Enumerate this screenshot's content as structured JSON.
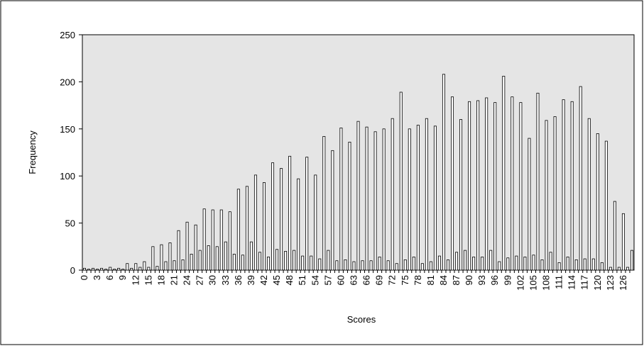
{
  "chart_data": {
    "type": "bar",
    "x_label": "Scores",
    "y_label": "Frequency",
    "categories": [
      0,
      null,
      null,
      3,
      null,
      null,
      6,
      null,
      null,
      9,
      null,
      null,
      12,
      null,
      null,
      15,
      null,
      null,
      18,
      null,
      null,
      21,
      null,
      null,
      24,
      null,
      null,
      27,
      null,
      null,
      30,
      null,
      null,
      33,
      null,
      null,
      36,
      null,
      null,
      39,
      null,
      null,
      42,
      null,
      null,
      45,
      null,
      null,
      48,
      null,
      null,
      51,
      null,
      null,
      54,
      null,
      null,
      57,
      null,
      null,
      60,
      null,
      null,
      63,
      null,
      null,
      66,
      null,
      null,
      69,
      null,
      null,
      72,
      null,
      null,
      75,
      null,
      null,
      78,
      null,
      null,
      81,
      null,
      null,
      84,
      null,
      null,
      87,
      null,
      null,
      90,
      null,
      null,
      93,
      null,
      null,
      96,
      null,
      null,
      99,
      null,
      null,
      102,
      null,
      null,
      105,
      null,
      null,
      108,
      null,
      null,
      111,
      null,
      null,
      114,
      null,
      null,
      117,
      null,
      null,
      120,
      null,
      null,
      123,
      null,
      null,
      126,
      null,
      null
    ],
    "values": [
      2,
      1,
      2,
      1,
      2,
      1,
      3,
      1,
      2,
      1,
      7,
      2,
      7,
      3,
      9,
      3,
      25,
      4,
      27,
      9,
      29,
      10,
      42,
      11,
      51,
      17,
      48,
      21,
      65,
      26,
      64,
      25,
      64,
      30,
      62,
      17,
      86,
      16,
      89,
      30,
      101,
      19,
      93,
      14,
      114,
      22,
      108,
      20,
      121,
      21,
      97,
      15,
      120,
      15,
      101,
      12,
      142,
      21,
      127,
      10,
      151,
      11,
      136,
      9,
      158,
      10,
      152,
      10,
      147,
      14,
      150,
      10,
      161,
      7,
      189,
      11,
      150,
      14,
      154,
      7,
      161,
      9,
      153,
      15,
      208,
      11,
      184,
      19,
      160,
      21,
      179,
      14,
      180,
      14,
      183,
      21,
      178,
      9,
      206,
      13,
      184,
      15,
      178,
      14,
      140,
      16,
      188,
      11,
      159,
      19,
      163,
      8,
      181,
      14,
      179,
      11,
      195,
      12,
      161,
      12,
      145,
      8,
      137,
      3,
      73,
      3,
      60,
      3,
      21
    ],
    "color": "#ffffff",
    "ylim": [
      0,
      250
    ],
    "yticks": [
      0,
      50,
      100,
      150,
      200,
      250
    ],
    "grid": false
  }
}
